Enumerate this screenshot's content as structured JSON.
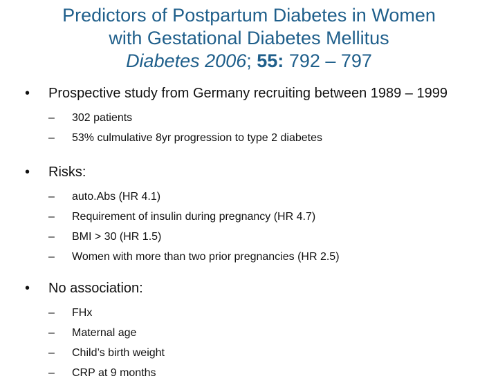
{
  "title": {
    "line1": "Predictors of Postpartum Diabetes in Women",
    "line2": "with Gestational Diabetes Mellitus",
    "citation": {
      "journal": "Diabetes",
      "year": "2006",
      "sep": ";",
      "volume": "55:",
      "pages": "792 – 797"
    }
  },
  "bullets": [
    {
      "text": "Prospective study from Germany recruiting between 1989 – 1999",
      "subitems": [
        "302 patients",
        "53% culmulative 8yr progression to type 2 diabetes"
      ]
    },
    {
      "text": "Risks:",
      "subitems": [
        "auto.Abs (HR 4.1)",
        "Requirement of insulin during pregnancy (HR 4.7)",
        "BMI > 30 (HR 1.5)",
        "Women with more than two prior pregnancies (HR 2.5)"
      ]
    },
    {
      "text": "No association:",
      "subitems": [
        "FHx",
        "Maternal age",
        "Child’s birth weight",
        "CRP at 9 months"
      ]
    }
  ],
  "glyphs": {
    "bullet": "•",
    "dash": "–"
  },
  "colors": {
    "title": "#1f5f8b",
    "text": "#111111",
    "background": "#ffffff"
  }
}
